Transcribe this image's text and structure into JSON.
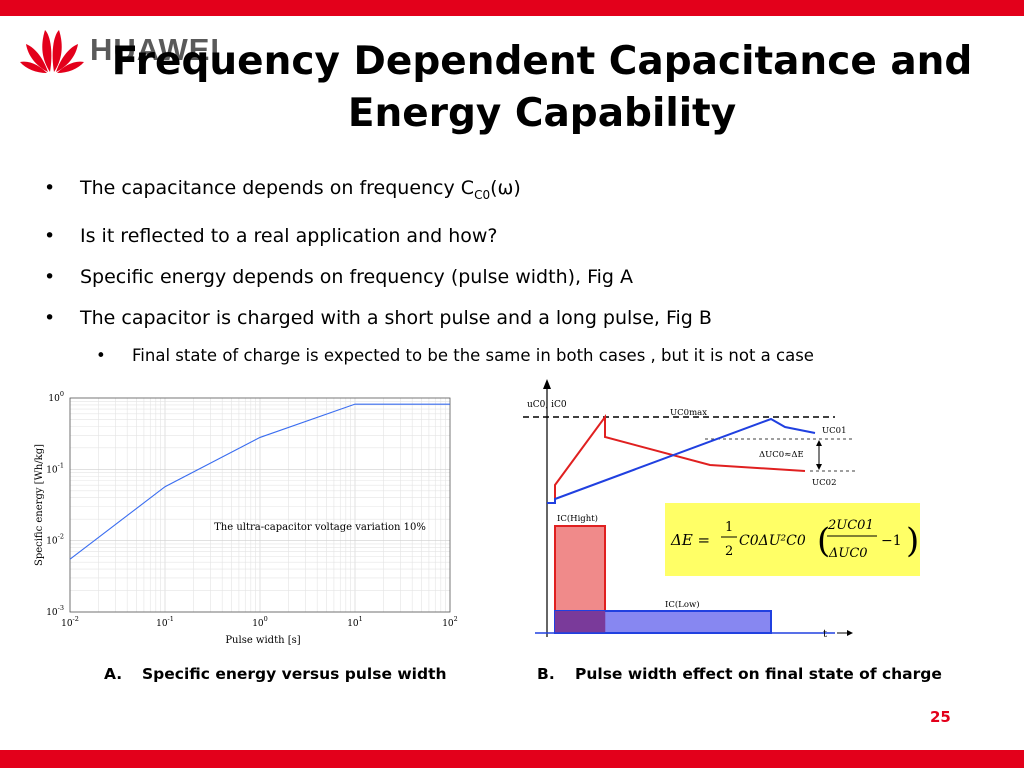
{
  "colors": {
    "brand_red": "#e3001b",
    "logo_gray": "#5a5a5a",
    "curve_blue": "#3a6df0",
    "curve_red": "#e02020"
  },
  "logo": {
    "text": "HUAWEI"
  },
  "title": {
    "line1": "Frequency Dependent Capacitance and",
    "line2": "Energy Capability"
  },
  "bullets": [
    {
      "text_before": "The capacitance depends on frequency C",
      "sub": "C0",
      "text_after": "(ω)"
    },
    {
      "text": "Is it reflected to a real application and how?"
    },
    {
      "text": "Specific energy depends on frequency (pulse width), Fig A"
    },
    {
      "text": "The capacitor is charged with a short pulse  and a long pulse, Fig B"
    },
    {
      "text": "Final state of charge is expected to be the same in both cases , but it is not a case"
    }
  ],
  "chart_data": {
    "type": "line",
    "xlabel": "Pulse width [s]",
    "ylabel": "Specific energy [Wh/kg]",
    "xscale": "log",
    "yscale": "log",
    "xlim": [
      0.01,
      100
    ],
    "ylim": [
      0.001,
      1
    ],
    "grid": true,
    "x": [
      0.01,
      0.1,
      1,
      10,
      100
    ],
    "series": [
      {
        "values": [
          0.0055,
          0.057,
          0.28,
          0.82,
          0.82
        ]
      }
    ],
    "x_ticks": [
      {
        "base": "10",
        "exp": "-2"
      },
      {
        "base": "10",
        "exp": "-1"
      },
      {
        "base": "10",
        "exp": "0"
      },
      {
        "base": "10",
        "exp": "1"
      },
      {
        "base": "10",
        "exp": "2"
      }
    ],
    "y_ticks": [
      {
        "base": "10",
        "exp": "-3"
      },
      {
        "base": "10",
        "exp": "-2"
      },
      {
        "base": "10",
        "exp": "-1"
      },
      {
        "base": "10",
        "exp": "0"
      }
    ],
    "annotation": "The ultra-capacitor voltage variation 10%"
  },
  "figB": {
    "axis_label": "uC0, iC0",
    "label_ucomax": "UC0max",
    "label_uc01": "UC01",
    "label_delta": "ΔUC0≈ΔE",
    "label_uc02": "UC02",
    "label_ic_high": "IC(Hight)",
    "label_ic_low": "IC(Low)",
    "label_t": "t",
    "formula": {
      "lhs": "ΔE =",
      "frac_num": "1",
      "frac_den": "2",
      "mid": "C0ΔU²C0",
      "inner_num": "2UC01",
      "inner_den": "ΔUC0",
      "tail": "−1"
    }
  },
  "captions": {
    "a_label": "A.",
    "a_text": "Specific energy versus pulse width",
    "b_label": "B.",
    "b_text": "Pulse width effect on final state of charge"
  },
  "page_number": "25"
}
